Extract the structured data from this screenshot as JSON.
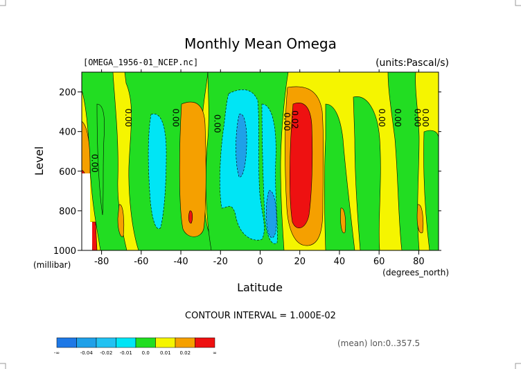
{
  "chart_data": {
    "type": "contour",
    "title": "Monthly Mean Omega",
    "source_file": "[OMEGA_1956-01_NCEP.nc]",
    "units": "(units:Pascal/s)",
    "xlabel": "Latitude",
    "xlabel_units": "(degrees_north)",
    "ylabel": "Level",
    "ylabel_units": "(millibar)",
    "x_range": [
      -90,
      90
    ],
    "y_range": [
      1000,
      100
    ],
    "x_ticks": [
      "-80",
      "-60",
      "-40",
      "-20",
      "0",
      "20",
      "40",
      "60",
      "80"
    ],
    "y_ticks": [
      "200",
      "400",
      "600",
      "800",
      "1000"
    ],
    "contour_interval": "CONTOUR INTERVAL = 1.000E-02",
    "mean_note": "(mean) lon:0..357.5",
    "contour_labels": [
      "0.00",
      "0.00",
      "0.00",
      "0.00",
      "0.00",
      "0.02",
      "0.00",
      "0.00",
      "0.00",
      "0.00"
    ],
    "levels": [
      {
        "label": "-∞",
        "min": null,
        "max": -0.04,
        "color": "#1e78e6"
      },
      {
        "label": "-0.04",
        "min": -0.04,
        "max": -0.03,
        "color": "#1fa0e8"
      },
      {
        "label": "-0.02",
        "min": -0.03,
        "max": -0.02,
        "color": "#22c2f2"
      },
      {
        "label": "-0.01",
        "min": -0.02,
        "max": -0.01,
        "color": "#00e5f5"
      },
      {
        "label": "0.0",
        "min": -0.01,
        "max": 0.0,
        "color": "#22dd22"
      },
      {
        "label": "0.01",
        "min": 0.0,
        "max": 0.01,
        "color": "#f5f500"
      },
      {
        "label": "0.02",
        "min": 0.01,
        "max": 0.02,
        "color": "#f5a000"
      },
      {
        "label": "∞",
        "min": 0.02,
        "max": null,
        "color": "#ee1111"
      }
    ]
  }
}
